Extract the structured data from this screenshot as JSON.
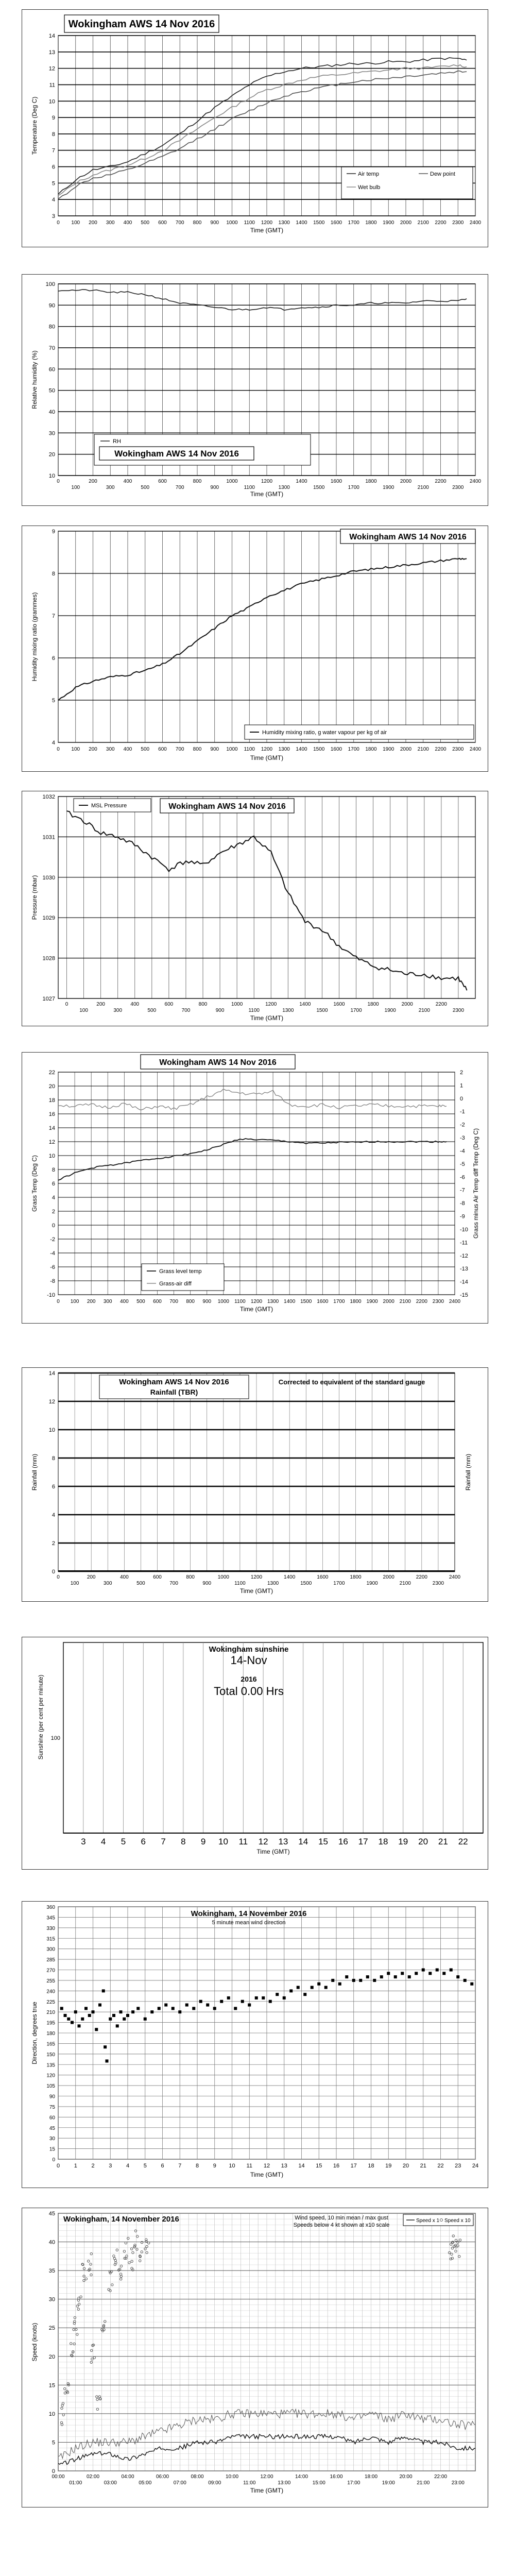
{
  "chart_data": [
    {
      "id": "temperature",
      "type": "line",
      "title": "Wokingham AWS 14 Nov 2016",
      "xlabel": "Time (GMT)",
      "ylabel": "Temperature (Deg C)",
      "xlim": [
        0,
        2400
      ],
      "ylim": [
        3,
        14
      ],
      "x_ticks": [
        "0",
        "100",
        "200",
        "300",
        "400",
        "500",
        "600",
        "700",
        "800",
        "900",
        "1000",
        "1100",
        "1200",
        "1300",
        "1400",
        "1500",
        "1600",
        "1700",
        "1800",
        "1900",
        "2000",
        "2100",
        "2200",
        "2300",
        "2400"
      ],
      "y_ticks": [
        3,
        4,
        5,
        6,
        7,
        8,
        9,
        10,
        11,
        12,
        13,
        14
      ],
      "legend": [
        "Air temp",
        "Dew point",
        "Wet bulb"
      ],
      "legend_position": "bottom-right",
      "grid": true,
      "x": [
        0,
        100,
        200,
        300,
        400,
        500,
        600,
        700,
        800,
        900,
        1000,
        1100,
        1200,
        1300,
        1400,
        1500,
        1600,
        1700,
        1800,
        1900,
        2000,
        2100,
        2200,
        2300,
        2350
      ],
      "series": [
        {
          "name": "Air temp",
          "color": "#222222",
          "values": [
            4.3,
            5.2,
            5.8,
            6.0,
            6.3,
            6.8,
            7.3,
            8.0,
            8.8,
            9.6,
            10.3,
            11.0,
            11.5,
            11.8,
            12.0,
            12.1,
            12.2,
            12.3,
            12.3,
            12.4,
            12.4,
            12.5,
            12.6,
            12.6,
            12.5
          ]
        },
        {
          "name": "Dew point",
          "color": "#555555",
          "values": [
            4.0,
            4.8,
            5.3,
            5.5,
            5.8,
            6.2,
            6.6,
            7.1,
            7.7,
            8.3,
            8.9,
            9.4,
            9.9,
            10.3,
            10.6,
            10.8,
            11.0,
            11.2,
            11.3,
            11.4,
            11.5,
            11.6,
            11.7,
            11.8,
            11.8
          ]
        },
        {
          "name": "Wet bulb",
          "color": "#888888",
          "values": [
            4.2,
            5.0,
            5.5,
            5.8,
            6.1,
            6.5,
            7.0,
            7.6,
            8.3,
            9.0,
            9.6,
            10.2,
            10.7,
            11.0,
            11.3,
            11.5,
            11.6,
            11.7,
            11.8,
            11.9,
            12.0,
            12.0,
            12.1,
            12.2,
            12.1
          ]
        }
      ]
    },
    {
      "id": "humidity",
      "type": "line",
      "title": "Wokingham AWS 14 Nov 2016",
      "xlabel": "Time (GMT)",
      "ylabel": "Relative humidity (%)",
      "xlim": [
        0,
        2400
      ],
      "ylim": [
        10,
        100
      ],
      "x_ticks": [
        "0",
        "100",
        "200",
        "300",
        "400",
        "500",
        "600",
        "700",
        "800",
        "900",
        "1000",
        "1100",
        "1200",
        "1300",
        "1400",
        "1500",
        "1600",
        "1700",
        "1800",
        "1900",
        "2000",
        "2100",
        "2200",
        "2300",
        "2400"
      ],
      "y_ticks": [
        10,
        20,
        30,
        40,
        50,
        60,
        70,
        80,
        90,
        100
      ],
      "legend": [
        "RH"
      ],
      "legend_position": "bottom-left",
      "grid": true,
      "x": [
        0,
        100,
        200,
        300,
        400,
        500,
        600,
        700,
        800,
        900,
        1000,
        1100,
        1200,
        1300,
        1400,
        1500,
        1600,
        1700,
        1800,
        1900,
        2000,
        2100,
        2200,
        2300,
        2350
      ],
      "series": [
        {
          "name": "RH",
          "color": "#222222",
          "values": [
            97,
            97,
            97,
            96,
            96,
            95,
            93,
            91,
            90,
            89,
            88,
            88,
            89,
            88,
            89,
            89,
            90,
            90,
            91,
            91,
            91,
            92,
            92,
            92,
            93
          ]
        }
      ]
    },
    {
      "id": "mixing_ratio",
      "type": "line",
      "title": "Wokingham AWS 14 Nov 2016",
      "xlabel": "Time (GMT)",
      "ylabel": "Humidity mixing ratio (grammes)",
      "xlim": [
        0,
        2400
      ],
      "ylim": [
        4,
        9
      ],
      "x_ticks": [
        "0",
        "100",
        "200",
        "300",
        "400",
        "500",
        "600",
        "700",
        "800",
        "900",
        "1000",
        "1100",
        "1200",
        "1300",
        "1400",
        "1500",
        "1600",
        "1700",
        "1800",
        "1900",
        "2000",
        "2100",
        "2200",
        "2300",
        "2400"
      ],
      "y_ticks": [
        4,
        5,
        6,
        7,
        8,
        9
      ],
      "legend": [
        "Humidity mixing ratio, g water vapour per kg of air"
      ],
      "legend_position": "bottom-right",
      "grid": true,
      "x": [
        0,
        100,
        200,
        300,
        400,
        500,
        600,
        700,
        800,
        900,
        1000,
        1100,
        1200,
        1300,
        1400,
        1500,
        1600,
        1700,
        1800,
        1900,
        2000,
        2100,
        2200,
        2300,
        2350
      ],
      "series": [
        {
          "name": "Humidity mixing ratio, g water vapour per kg of air",
          "color": "#111111",
          "values": [
            5.0,
            5.3,
            5.45,
            5.55,
            5.6,
            5.7,
            5.85,
            6.1,
            6.4,
            6.7,
            7.0,
            7.2,
            7.45,
            7.6,
            7.75,
            7.85,
            7.95,
            8.05,
            8.1,
            8.15,
            8.2,
            8.25,
            8.3,
            8.35,
            8.35
          ]
        }
      ]
    },
    {
      "id": "pressure",
      "type": "line",
      "title": "Wokingham AWS 14 Nov 2016",
      "xlabel": "Time (GMT)",
      "ylabel": "Pressure (mbar)",
      "xlim": [
        -50,
        2400
      ],
      "ylim": [
        1027,
        1032
      ],
      "x_ticks_top": [
        "0",
        "200",
        "400",
        "600",
        "800",
        "1000",
        "1200",
        "1400",
        "1600",
        "1800",
        "2000",
        "2200"
      ],
      "x_ticks_bottom": [
        "100",
        "300",
        "500",
        "700",
        "900",
        "1100",
        "1300",
        "1500",
        "1700",
        "1900",
        "2100",
        "2300"
      ],
      "y_ticks": [
        1027,
        1028,
        1029,
        1030,
        1031,
        1032
      ],
      "legend": [
        "MSL Pressure"
      ],
      "legend_position": "top-left",
      "grid": true,
      "x": [
        0,
        100,
        200,
        300,
        400,
        500,
        600,
        700,
        800,
        900,
        1000,
        1100,
        1200,
        1300,
        1400,
        1500,
        1600,
        1700,
        1800,
        1900,
        2000,
        2100,
        2200,
        2300,
        2350
      ],
      "series": [
        {
          "name": "MSL Pressure",
          "color": "#111111",
          "values": [
            1031.6,
            1031.4,
            1031.1,
            1031.0,
            1030.8,
            1030.5,
            1030.2,
            1030.4,
            1030.3,
            1030.6,
            1030.8,
            1031.0,
            1030.6,
            1029.6,
            1028.9,
            1028.7,
            1028.3,
            1028.0,
            1027.8,
            1027.7,
            1027.6,
            1027.6,
            1027.5,
            1027.5,
            1027.2
          ]
        }
      ]
    },
    {
      "id": "grass",
      "type": "line",
      "title": "Wokingham AWS 14 Nov 2016",
      "xlabel": "Time (GMT)",
      "ylabel": "Grass Temp (Deg C)",
      "ylabel_right": "Grass minus Air Temp diff Temp (Deg C)",
      "xlim": [
        0,
        2400
      ],
      "ylim": [
        -10,
        22
      ],
      "y2lim": [
        -15,
        2
      ],
      "x_ticks": [
        "0",
        "100",
        "200",
        "300",
        "400",
        "500",
        "600",
        "700",
        "800",
        "900",
        "1000",
        "1100",
        "1200",
        "1300",
        "1400",
        "1500",
        "1600",
        "1700",
        "1800",
        "1900",
        "2000",
        "2100",
        "2200",
        "2300",
        "2400"
      ],
      "y_ticks": [
        -10,
        -8,
        -6,
        -4,
        -2,
        0,
        2,
        4,
        6,
        8,
        10,
        12,
        14,
        16,
        18,
        20,
        22
      ],
      "y2_ticks": [
        2,
        1,
        0,
        -1,
        -2,
        -3,
        -4,
        -5,
        -6,
        -7,
        -8,
        -9,
        -10,
        -11,
        -12,
        -13,
        -14,
        -15
      ],
      "legend": [
        "Grass level temp",
        "Grass-air diff"
      ],
      "legend_position": "bottom-left",
      "grid": true,
      "x": [
        0,
        100,
        200,
        300,
        400,
        500,
        600,
        700,
        800,
        900,
        1000,
        1100,
        1200,
        1300,
        1400,
        1500,
        1600,
        1700,
        1800,
        1900,
        2000,
        2100,
        2200,
        2300,
        2350
      ],
      "series": [
        {
          "name": "Grass level temp",
          "color": "#111111",
          "axis": "left",
          "values": [
            6.5,
            7.5,
            8.2,
            8.6,
            8.9,
            9.3,
            9.6,
            9.9,
            10.3,
            10.8,
            11.6,
            12.4,
            12.3,
            12.2,
            12.0,
            11.8,
            11.8,
            11.9,
            11.9,
            12.0,
            12.0,
            12.0,
            12.0,
            12.0,
            12.0
          ]
        },
        {
          "name": "Grass-air diff",
          "color": "#888888",
          "axis": "right",
          "values": [
            -0.5,
            -0.6,
            -0.5,
            -0.7,
            -0.4,
            -0.9,
            -0.6,
            -0.8,
            -0.5,
            0.1,
            0.6,
            0.4,
            0.3,
            0.5,
            -0.5,
            -0.6,
            -0.5,
            -0.7,
            -0.6,
            -0.5,
            -0.6,
            -0.6,
            -0.6,
            -0.6,
            -0.6
          ]
        }
      ]
    },
    {
      "id": "rainfall",
      "type": "bar",
      "title": "Wokingham AWS 14 Nov 2016",
      "subtitle": "Rainfall (TBR)",
      "note": "Corrected to equivalent of the standard gauge",
      "xlabel": "Time (GMT)",
      "ylabel": "Rainfall (mm)",
      "ylabel_right": "Rainfall (mm)",
      "xlim": [
        0,
        2400
      ],
      "ylim": [
        0,
        14
      ],
      "x_ticks_top": [
        "0",
        "200",
        "400",
        "600",
        "800",
        "1000",
        "1200",
        "1400",
        "1600",
        "1800",
        "2000",
        "2200",
        "2400"
      ],
      "x_ticks_bottom": [
        "100",
        "300",
        "500",
        "700",
        "900",
        "1100",
        "1300",
        "1500",
        "1700",
        "1900",
        "2100",
        "2300"
      ],
      "y_ticks": [
        0,
        2,
        4,
        6,
        8,
        10,
        12,
        14
      ],
      "grid": true,
      "values": [
        0
      ]
    },
    {
      "id": "sunshine",
      "type": "bar",
      "title": "Wokingham sunshine",
      "date": "14-Nov",
      "year": "2016",
      "total": "Total 0.00 Hrs",
      "xlabel": "Time (GMT)",
      "ylabel": "Sunshine (per cent per minute)",
      "xlim": [
        2,
        23
      ],
      "ylim": [
        0,
        200
      ],
      "x_ticks": [
        "3",
        "4",
        "5",
        "6",
        "7",
        "8",
        "9",
        "10",
        "11",
        "12",
        "13",
        "14",
        "15",
        "16",
        "17",
        "18",
        "19",
        "20",
        "21",
        "22"
      ],
      "y_ticks": [
        100
      ],
      "grid": true,
      "values": [
        0
      ]
    },
    {
      "id": "wind_direction",
      "type": "scatter",
      "title": "Wokingham,  14 November 2016",
      "subtitle": "5 minute mean wind direction",
      "xlabel": "Time (GMT)",
      "ylabel": "Direction, degrees true",
      "xlim": [
        0,
        24
      ],
      "ylim": [
        0,
        360
      ],
      "x_ticks": [
        "0",
        "1",
        "2",
        "3",
        "4",
        "5",
        "6",
        "7",
        "8",
        "9",
        "10",
        "11",
        "12",
        "13",
        "14",
        "15",
        "16",
        "17",
        "18",
        "19",
        "20",
        "21",
        "22",
        "23",
        "24"
      ],
      "y_ticks": [
        0,
        15,
        30,
        45,
        60,
        75,
        90,
        105,
        120,
        135,
        150,
        165,
        180,
        195,
        210,
        225,
        240,
        255,
        270,
        285,
        300,
        315,
        330,
        345,
        360
      ],
      "grid": true,
      "x": [
        0.2,
        0.4,
        0.6,
        0.8,
        1.0,
        1.2,
        1.4,
        1.6,
        1.8,
        2.0,
        2.2,
        2.4,
        2.6,
        2.7,
        2.8,
        3.0,
        3.2,
        3.4,
        3.6,
        3.8,
        4.0,
        4.3,
        4.6,
        5.0,
        5.4,
        5.8,
        6.2,
        6.6,
        7.0,
        7.4,
        7.8,
        8.2,
        8.6,
        9.0,
        9.4,
        9.8,
        10.2,
        10.6,
        11.0,
        11.4,
        11.8,
        12.2,
        12.6,
        13.0,
        13.4,
        13.8,
        14.2,
        14.6,
        15.0,
        15.4,
        15.8,
        16.2,
        16.6,
        17.0,
        17.4,
        17.8,
        18.2,
        18.6,
        19.0,
        19.4,
        19.8,
        20.2,
        20.6,
        21.0,
        21.4,
        21.8,
        22.2,
        22.6,
        23.0,
        23.4,
        23.8
      ],
      "values": [
        215,
        205,
        200,
        195,
        210,
        190,
        200,
        215,
        205,
        210,
        185,
        220,
        240,
        160,
        140,
        200,
        205,
        190,
        210,
        200,
        205,
        210,
        215,
        200,
        210,
        215,
        220,
        215,
        210,
        220,
        215,
        225,
        220,
        215,
        225,
        230,
        215,
        225,
        220,
        230,
        230,
        225,
        235,
        230,
        240,
        245,
        235,
        245,
        250,
        245,
        255,
        250,
        260,
        255,
        255,
        260,
        255,
        260,
        265,
        260,
        265,
        260,
        265,
        270,
        265,
        270,
        265,
        270,
        260,
        255,
        250
      ]
    },
    {
      "id": "wind_speed",
      "type": "line",
      "title": "Wokingham,  14 November 2016",
      "subtitle": "Wind speed, 10 min mean / max gust",
      "subtitle2": "Speeds below 4 kt shown at x10 scale",
      "xlabel": "Time (GMT)",
      "ylabel": "Speed (knots)",
      "xlim": [
        0,
        24
      ],
      "ylim": [
        0,
        45
      ],
      "x_ticks_top": [
        "00:00",
        "02:00",
        "04:00",
        "06:00",
        "08:00",
        "10:00",
        "12:00",
        "14:00",
        "16:00",
        "18:00",
        "20:00",
        "22:00"
      ],
      "x_ticks_bottom": [
        "01:00",
        "03:00",
        "05:00",
        "07:00",
        "09:00",
        "11:00",
        "13:00",
        "15:00",
        "17:00",
        "19:00",
        "21:00",
        "23:00"
      ],
      "y_ticks": [
        0,
        5,
        10,
        15,
        20,
        25,
        30,
        35,
        40,
        45
      ],
      "legend": [
        "Speed x 1",
        "Speed x 10"
      ],
      "legend_position": "top-right",
      "grid": true,
      "x": [
        0,
        1,
        2,
        3,
        4,
        5,
        6,
        7,
        8,
        9,
        10,
        11,
        12,
        13,
        14,
        15,
        16,
        17,
        18,
        19,
        20,
        21,
        22,
        23,
        24
      ],
      "series": [
        {
          "name": "Speed x 1",
          "color": "#111111",
          "values": [
            1,
            2,
            3,
            3,
            2,
            3,
            4,
            4,
            5,
            5,
            6,
            6,
            6,
            6,
            6,
            6,
            6,
            5,
            6,
            5,
            6,
            5,
            5,
            4,
            4
          ]
        },
        {
          "name": "Max gust",
          "color": "#555555",
          "values": [
            2,
            4,
            5,
            5,
            5,
            6,
            7,
            8,
            9,
            9,
            10,
            10,
            10,
            10,
            10,
            10,
            10,
            9,
            10,
            9,
            10,
            9,
            9,
            8,
            8
          ]
        },
        {
          "name": "Speed x 10",
          "color": "#666666",
          "x": [
            0.2,
            0.5,
            0.8,
            1.0,
            1.2,
            1.5,
            1.8,
            2.0,
            2.3,
            2.6,
            3.0,
            3.3,
            3.6,
            3.9,
            4.2,
            4.5,
            4.8,
            5.1,
            22.6,
            22.8,
            23.0
          ],
          "values": [
            10,
            14,
            22,
            25,
            30,
            35,
            36,
            20,
            12,
            25,
            33,
            38,
            35,
            39,
            37,
            40,
            38,
            39,
            38,
            40,
            39
          ]
        }
      ]
    }
  ]
}
